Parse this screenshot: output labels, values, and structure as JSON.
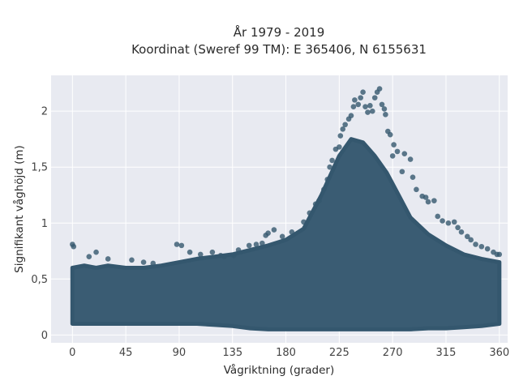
{
  "chart_data": {
    "type": "scatter",
    "title": "År 1979 - 2019",
    "subtitle": "Koordinat (Sweref 99 TM): E 365406, N 6155631",
    "xlabel": "Vågriktning (grader)",
    "ylabel": "Signifikant våghöjd (m)",
    "xlim": [
      -18,
      367
    ],
    "ylim": [
      -0.07,
      2.32
    ],
    "xticks": [
      0,
      45,
      90,
      135,
      180,
      225,
      270,
      315,
      360
    ],
    "xtick_labels": [
      "0",
      "45",
      "90",
      "135",
      "180",
      "225",
      "270",
      "315",
      "360"
    ],
    "yticks": [
      0,
      0.5,
      1,
      1.5,
      2
    ],
    "ytick_labels": [
      "0",
      "0,5",
      "1",
      "1,5",
      "2"
    ],
    "grid": true,
    "marker_color": "#34576e",
    "background": "#e8eaf1",
    "envelope": {
      "direction": [
        0,
        10,
        20,
        30,
        45,
        60,
        75,
        90,
        105,
        120,
        135,
        150,
        165,
        180,
        195,
        210,
        225,
        235,
        245,
        255,
        265,
        275,
        285,
        300,
        315,
        330,
        345,
        360
      ],
      "lower_hs": [
        0.1,
        0.1,
        0.1,
        0.1,
        0.1,
        0.1,
        0.1,
        0.1,
        0.1,
        0.09,
        0.08,
        0.06,
        0.05,
        0.05,
        0.05,
        0.05,
        0.05,
        0.05,
        0.05,
        0.05,
        0.05,
        0.05,
        0.05,
        0.06,
        0.06,
        0.07,
        0.08,
        0.1
      ],
      "upper_hs": [
        0.6,
        0.62,
        0.6,
        0.62,
        0.6,
        0.6,
        0.62,
        0.65,
        0.68,
        0.7,
        0.72,
        0.76,
        0.8,
        0.85,
        0.95,
        1.25,
        1.6,
        1.75,
        1.72,
        1.6,
        1.45,
        1.25,
        1.05,
        0.9,
        0.8,
        0.72,
        0.68,
        0.65
      ]
    },
    "points": [
      [
        0,
        0.81
      ],
      [
        1,
        0.79
      ],
      [
        14,
        0.7
      ],
      [
        20,
        0.74
      ],
      [
        30,
        0.68
      ],
      [
        50,
        0.67
      ],
      [
        60,
        0.65
      ],
      [
        68,
        0.64
      ],
      [
        88,
        0.81
      ],
      [
        92,
        0.8
      ],
      [
        99,
        0.74
      ],
      [
        108,
        0.72
      ],
      [
        118,
        0.74
      ],
      [
        125,
        0.71
      ],
      [
        128,
        0.7
      ],
      [
        136,
        0.71
      ],
      [
        140,
        0.76
      ],
      [
        149,
        0.8
      ],
      [
        155,
        0.81
      ],
      [
        160,
        0.82
      ],
      [
        163,
        0.89
      ],
      [
        165,
        0.91
      ],
      [
        170,
        0.94
      ],
      [
        177,
        0.88
      ],
      [
        185,
        0.92
      ],
      [
        195,
        1.01
      ],
      [
        200,
        1.09
      ],
      [
        205,
        1.17
      ],
      [
        208,
        1.2
      ],
      [
        212,
        1.3
      ],
      [
        215,
        1.39
      ],
      [
        217,
        1.5
      ],
      [
        219,
        1.56
      ],
      [
        222,
        1.66
      ],
      [
        225,
        1.68
      ],
      [
        226,
        1.78
      ],
      [
        228,
        1.84
      ],
      [
        230,
        1.88
      ],
      [
        233,
        1.93
      ],
      [
        235,
        1.96
      ],
      [
        237,
        2.04
      ],
      [
        238,
        2.1
      ],
      [
        241,
        2.06
      ],
      [
        243,
        2.12
      ],
      [
        245,
        2.17
      ],
      [
        247,
        2.04
      ],
      [
        249,
        1.99
      ],
      [
        251,
        2.05
      ],
      [
        253,
        2.0
      ],
      [
        255,
        2.12
      ],
      [
        257,
        2.17
      ],
      [
        259,
        2.2
      ],
      [
        261,
        2.06
      ],
      [
        263,
        2.02
      ],
      [
        264,
        1.97
      ],
      [
        266,
        1.82
      ],
      [
        268,
        1.79
      ],
      [
        270,
        1.6
      ],
      [
        271,
        1.7
      ],
      [
        274,
        1.64
      ],
      [
        278,
        1.46
      ],
      [
        280,
        1.62
      ],
      [
        285,
        1.57
      ],
      [
        287,
        1.41
      ],
      [
        290,
        1.3
      ],
      [
        295,
        1.24
      ],
      [
        298,
        1.23
      ],
      [
        300,
        1.19
      ],
      [
        305,
        1.2
      ],
      [
        308,
        1.06
      ],
      [
        312,
        1.02
      ],
      [
        317,
        1.0
      ],
      [
        322,
        1.01
      ],
      [
        325,
        0.96
      ],
      [
        328,
        0.92
      ],
      [
        333,
        0.88
      ],
      [
        336,
        0.85
      ],
      [
        340,
        0.81
      ],
      [
        345,
        0.79
      ],
      [
        350,
        0.77
      ],
      [
        355,
        0.74
      ],
      [
        358,
        0.72
      ],
      [
        360,
        0.72
      ]
    ]
  }
}
